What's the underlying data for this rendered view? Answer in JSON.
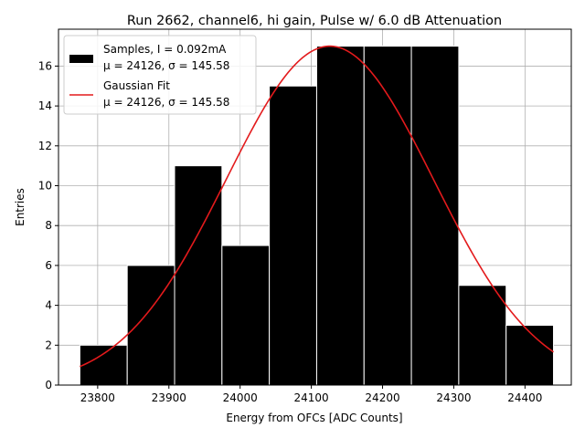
{
  "chart_data": {
    "type": "bar",
    "title": "Run 2662, channel6, hi gain, Pulse w/ 6.0 dB Attenuation",
    "xlabel": "Energy from OFCs [ADC Counts]",
    "ylabel": "Entries",
    "xlim": [
      23745,
      24465
    ],
    "ylim": [
      0,
      17.85
    ],
    "xticks": [
      23800,
      23900,
      24000,
      24100,
      24200,
      24300,
      24400
    ],
    "yticks": [
      0,
      2,
      4,
      6,
      8,
      10,
      12,
      14,
      16
    ],
    "grid": true,
    "legend_position": "top-left",
    "histogram": {
      "bin_edges": [
        23775,
        23841.5,
        23908,
        23974.5,
        24041,
        24107.5,
        24174,
        24240.5,
        24307,
        24373.5,
        24440
      ],
      "counts": [
        2,
        6,
        11,
        7,
        15,
        17,
        17,
        17,
        5,
        3
      ],
      "color": "#000000",
      "edge_color": "#ffffff"
    },
    "fit": {
      "mu": 24126,
      "sigma": 145.58,
      "amplitude": 17,
      "x_range": [
        23775,
        24440
      ],
      "color": "#e31a1c"
    },
    "legend": [
      {
        "kind": "patch",
        "line1": "Samples, I = 0.092mA",
        "line2": "μ = 24126, σ = 145.58"
      },
      {
        "kind": "line",
        "line1": "Gaussian Fit",
        "line2": "μ = 24126, σ = 145.58"
      }
    ]
  }
}
